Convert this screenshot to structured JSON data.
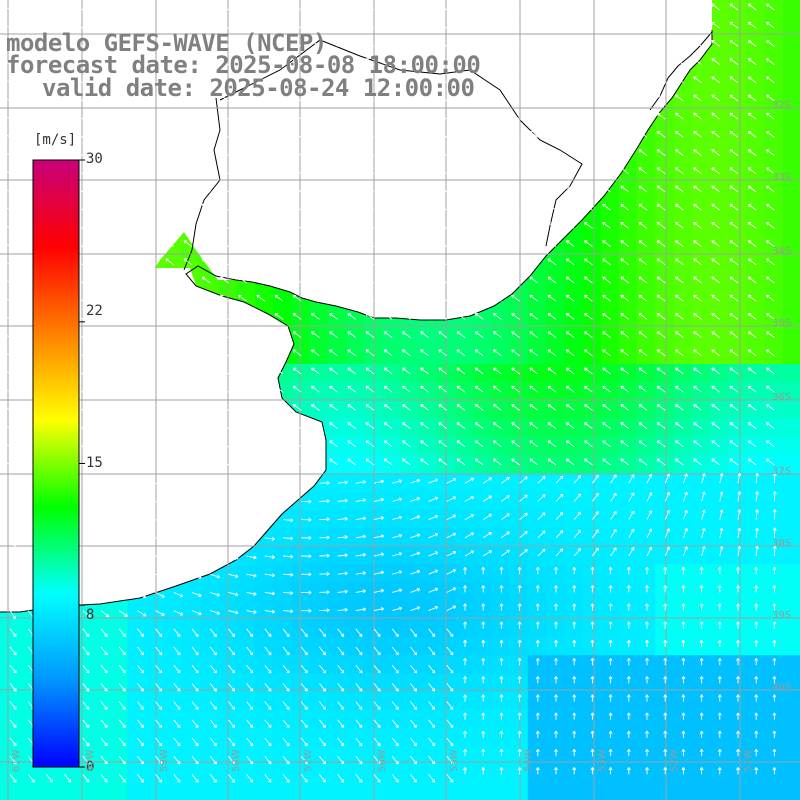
{
  "title": {
    "line1": "modelo GEFS-WAVE (NCEP)",
    "line2": "forecast date: 2025-08-08 18:00:00",
    "line3": "valid date: 2025-08-24 12:00:00"
  },
  "colorbar": {
    "unit": "[m/s]",
    "ticks": [
      "30",
      "22",
      "15",
      "8",
      "0"
    ],
    "tick_values": [
      30,
      22,
      15,
      8,
      0
    ],
    "min": 0,
    "max": 30,
    "colors": [
      "#0000ff",
      "#0096ff",
      "#00ffff",
      "#00ff00",
      "#ffff00",
      "#ff8000",
      "#ff0000",
      "#c8007a"
    ]
  },
  "axes": {
    "lon_labels": [
      "61W",
      "60W",
      "59W",
      "58W",
      "57W",
      "56W",
      "55W",
      "54W",
      "53W",
      "52W",
      "51W"
    ],
    "lat_labels": [
      "32S",
      "33S",
      "34S",
      "35S",
      "36S",
      "37S",
      "38S",
      "39S",
      "40S"
    ]
  },
  "colors": {
    "land": "#ffffff",
    "coast": "#000000",
    "grid": "#a0a0a0",
    "arrow": "#ffffff",
    "title": "#808080"
  }
}
